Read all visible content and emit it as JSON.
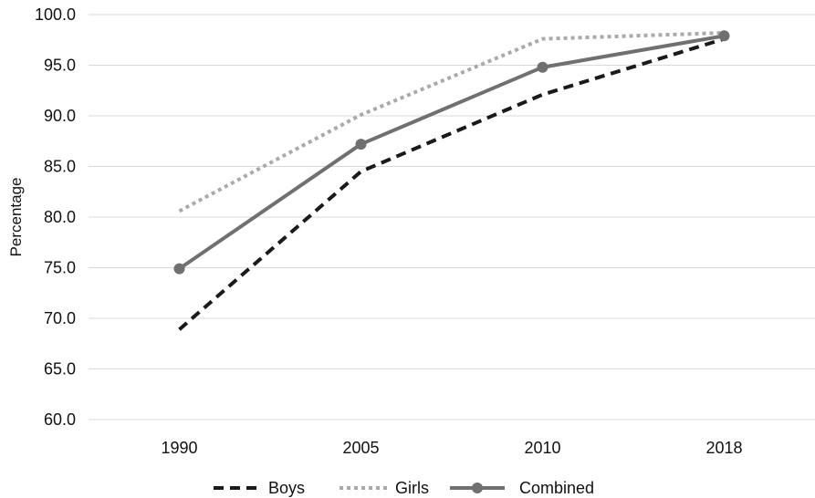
{
  "chart_data": {
    "type": "line",
    "categories": [
      "1990",
      "2005",
      "2010",
      "2018"
    ],
    "title": "",
    "xlabel": "",
    "ylabel": "Percentage",
    "ylim": [
      60,
      100
    ],
    "yticks": [
      "60.0",
      "65.0",
      "70.0",
      "75.0",
      "80.0",
      "85.0",
      "90.0",
      "95.0",
      "100.0"
    ],
    "grid": "horizontal",
    "legend_position": "bottom",
    "series": [
      {
        "name": "Boys",
        "values": [
          68.9,
          84.5,
          92.1,
          97.6
        ],
        "color": "#1a1a1a",
        "style": "dashed"
      },
      {
        "name": "Girls",
        "values": [
          80.6,
          90.1,
          97.6,
          98.2
        ],
        "color": "#aaaaaa",
        "style": "dotted"
      },
      {
        "name": "Combined",
        "values": [
          74.9,
          87.2,
          94.8,
          97.9
        ],
        "color": "#707070",
        "style": "solid-markers"
      }
    ]
  }
}
